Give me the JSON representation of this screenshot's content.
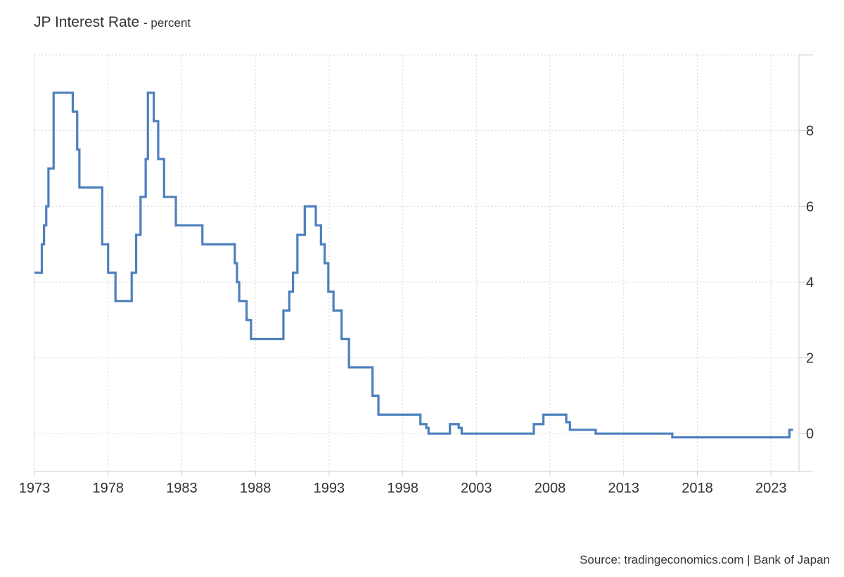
{
  "title": "JP Interest Rate",
  "unit": "- percent",
  "source": "Source: tradingeconomics.com | Bank of Japan",
  "chart_data": {
    "type": "line",
    "step": true,
    "title": "JP Interest Rate",
    "subtitle": "- percent",
    "xlabel": "",
    "ylabel": "",
    "xlim": [
      1973.0,
      2024.9
    ],
    "ylim": [
      -1,
      10
    ],
    "x_ticks": [
      "1973",
      "1978",
      "1983",
      "1988",
      "1993",
      "1998",
      "2003",
      "2008",
      "2013",
      "2018",
      "2023"
    ],
    "y_ticks": [
      0,
      2,
      4,
      6,
      8
    ],
    "grid": true,
    "y_axis_position": "right",
    "color": "#4d80bd",
    "series": [
      {
        "name": "",
        "points": [
          [
            1973.0,
            4.25
          ],
          [
            1973.5,
            5.0
          ],
          [
            1973.65,
            5.5
          ],
          [
            1973.8,
            6.0
          ],
          [
            1973.95,
            7.0
          ],
          [
            1974.3,
            9.0
          ],
          [
            1975.6,
            8.5
          ],
          [
            1975.9,
            7.5
          ],
          [
            1976.05,
            6.5
          ],
          [
            1977.6,
            5.0
          ],
          [
            1978.0,
            4.25
          ],
          [
            1978.5,
            3.5
          ],
          [
            1979.6,
            4.25
          ],
          [
            1979.9,
            5.25
          ],
          [
            1980.2,
            6.25
          ],
          [
            1980.55,
            7.25
          ],
          [
            1980.7,
            9.0
          ],
          [
            1981.1,
            8.25
          ],
          [
            1981.4,
            7.25
          ],
          [
            1981.8,
            6.25
          ],
          [
            1982.6,
            5.5
          ],
          [
            1984.4,
            5.0
          ],
          [
            1986.6,
            4.5
          ],
          [
            1986.75,
            4.0
          ],
          [
            1986.9,
            3.5
          ],
          [
            1987.4,
            3.0
          ],
          [
            1987.7,
            2.5
          ],
          [
            1989.9,
            3.25
          ],
          [
            1990.3,
            3.75
          ],
          [
            1990.55,
            4.25
          ],
          [
            1990.85,
            5.25
          ],
          [
            1991.35,
            6.0
          ],
          [
            1992.1,
            5.5
          ],
          [
            1992.45,
            5.0
          ],
          [
            1992.7,
            4.5
          ],
          [
            1992.95,
            3.75
          ],
          [
            1993.3,
            3.25
          ],
          [
            1993.85,
            2.5
          ],
          [
            1994.35,
            1.75
          ],
          [
            1995.95,
            1.0
          ],
          [
            1996.35,
            0.5
          ],
          [
            1999.2,
            0.25
          ],
          [
            1999.6,
            0.15
          ],
          [
            1999.75,
            0.0
          ],
          [
            2001.2,
            0.25
          ],
          [
            2001.8,
            0.15
          ],
          [
            2002.0,
            0.0
          ],
          [
            2006.9,
            0.25
          ],
          [
            2007.55,
            0.5
          ],
          [
            2009.1,
            0.3
          ],
          [
            2009.35,
            0.1
          ],
          [
            2011.1,
            0.0
          ],
          [
            2016.3,
            -0.1
          ],
          [
            2024.25,
            0.1
          ],
          [
            2024.5,
            0.1
          ]
        ]
      }
    ]
  }
}
